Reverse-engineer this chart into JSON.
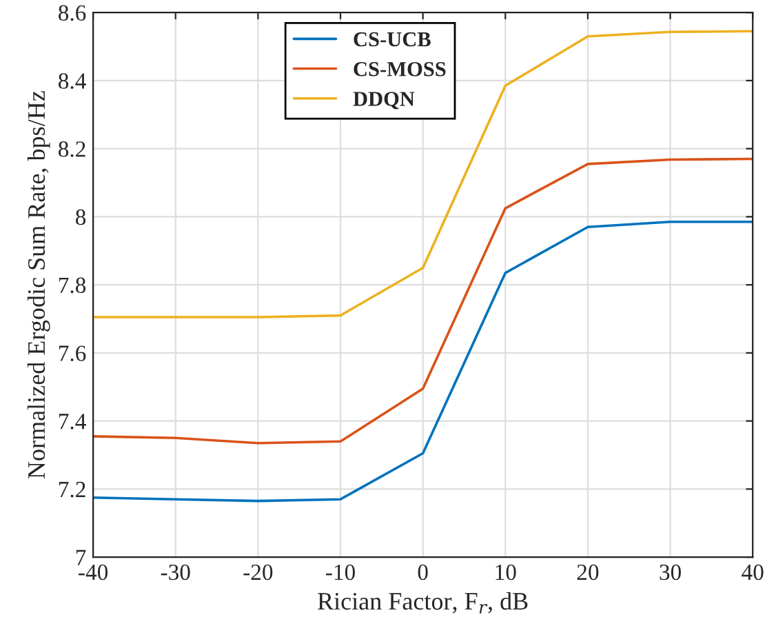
{
  "chart_data": {
    "type": "line",
    "xlabel": "Rician Factor, F$_{r}$, dB",
    "ylabel": "Normalized Ergodic Sum Rate, bps/Hz",
    "x": [
      -40,
      -30,
      -20,
      -10,
      0,
      10,
      20,
      30,
      40
    ],
    "series": [
      {
        "name": "CS-UCB",
        "color": "#0072bd",
        "values": [
          7.175,
          7.17,
          7.165,
          7.17,
          7.305,
          7.835,
          7.97,
          7.985,
          7.985
        ]
      },
      {
        "name": "CS-MOSS",
        "color": "#d95319",
        "values": [
          7.355,
          7.35,
          7.335,
          7.34,
          7.495,
          8.025,
          8.155,
          8.168,
          8.17
        ]
      },
      {
        "name": "DDQN",
        "color": "#edb120",
        "values": [
          7.705,
          7.705,
          7.705,
          7.71,
          7.85,
          8.385,
          8.53,
          8.543,
          8.545
        ]
      }
    ],
    "xlim": [
      -40,
      40
    ],
    "xticks": [
      -40,
      -30,
      -20,
      -10,
      0,
      10,
      20,
      30,
      40
    ],
    "ylim": [
      7,
      8.6
    ],
    "yticks": [
      7,
      7.2,
      7.4,
      7.6,
      7.8,
      8,
      8.2,
      8.4,
      8.6
    ],
    "grid": true,
    "legend": "top",
    "marker": "none",
    "line_style": "solid"
  }
}
